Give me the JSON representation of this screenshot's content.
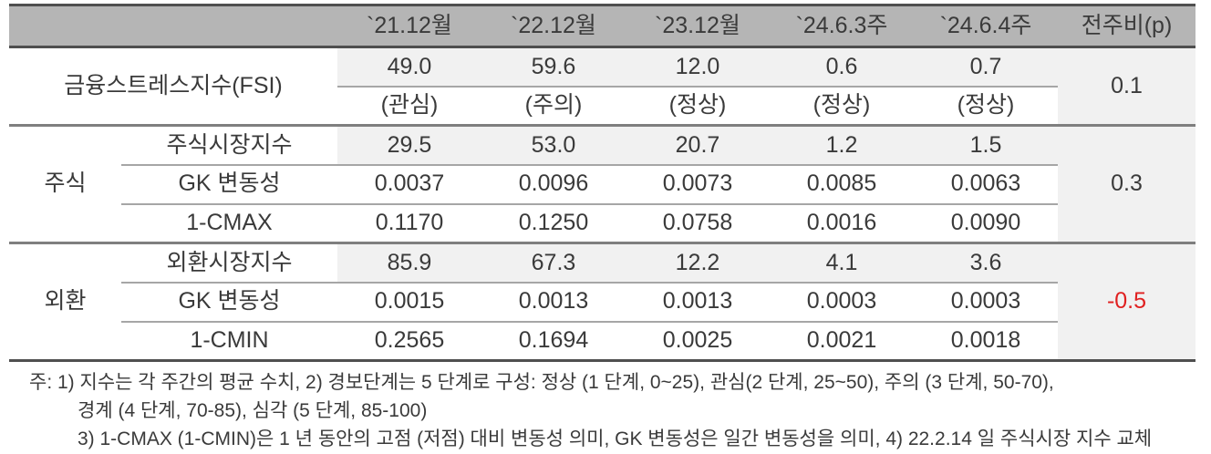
{
  "header": {
    "corner": "",
    "cols": [
      "`21.12월",
      "`22.12월",
      "`23.12월",
      "`24.6.3주",
      "`24.6.4주"
    ],
    "wow": "전주비(p)"
  },
  "fsi": {
    "label": "금융스트레스지수(FSI)",
    "values": [
      "49.0",
      "59.6",
      "12.0",
      "0.6",
      "0.7"
    ],
    "statuses": [
      "(관심)",
      "(주의)",
      "(정상)",
      "(정상)",
      "(정상)"
    ],
    "wow": "0.1"
  },
  "stock": {
    "label": "주식",
    "wow": "0.3",
    "rows": [
      {
        "label": "주식시장지수",
        "values": [
          "29.5",
          "53.0",
          "20.7",
          "1.2",
          "1.5"
        ]
      },
      {
        "label": "GK 변동성",
        "values": [
          "0.0037",
          "0.0096",
          "0.0073",
          "0.0085",
          "0.0063"
        ]
      },
      {
        "label": "1-CMAX",
        "values": [
          "0.1170",
          "0.1250",
          "0.0758",
          "0.0016",
          "0.0090"
        ]
      }
    ]
  },
  "fx": {
    "label": "외환",
    "wow": "-0.5",
    "rows": [
      {
        "label": "외환시장지수",
        "values": [
          "85.9",
          "67.3",
          "12.2",
          "4.1",
          "3.6"
        ]
      },
      {
        "label": "GK 변동성",
        "values": [
          "0.0015",
          "0.0013",
          "0.0013",
          "0.0003",
          "0.0003"
        ]
      },
      {
        "label": "1-CMIN",
        "values": [
          "0.2565",
          "0.1694",
          "0.0025",
          "0.0021",
          "0.0018"
        ]
      }
    ]
  },
  "footnotes": {
    "line1": "주: 1) 지수는 각 주간의 평균 수치, 2) 경보단계는 5 단계로 구성: 정상 (1 단계, 0~25), 관심(2 단계, 25~50), 주의 (3 단계, 50-70),",
    "line2": "경계 (4 단계, 70-85), 심각 (5 단계, 85-100)",
    "line3": "3) 1-CMAX (1-CMIN)은 1 년 동안의 고점 (저점) 대비 변동성 의미, GK 변동성은 일간 변동성을 의미, 4) 22.2.14 일 주식시장 지수 교체"
  },
  "colors": {
    "header_bg": "#b5b5b5",
    "shade_bg": "#f1f1f1",
    "border_dark": "#4f4f4f",
    "border_mid": "#7f7f7f",
    "border_light": "#a6a6a6",
    "text": "#3a3a3a",
    "negative": "#e02020",
    "page_bg": "#ffffff"
  }
}
